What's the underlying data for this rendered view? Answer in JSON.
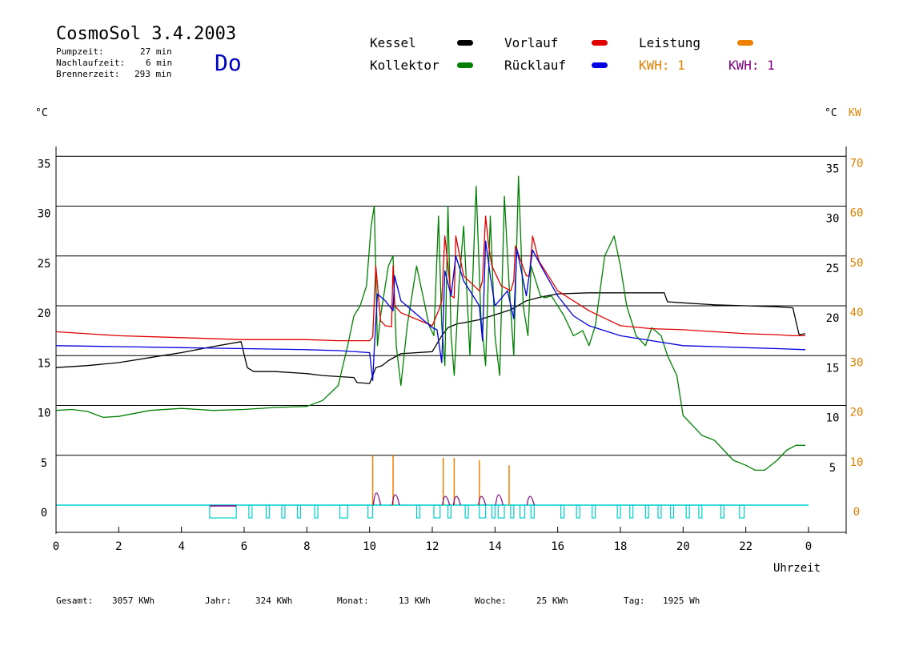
{
  "header": {
    "title": "CosmoSol 3.4.2003",
    "day": "Do",
    "stats": [
      {
        "label": "Pumpzeit:",
        "value": "27 min"
      },
      {
        "label": "Nachlaufzeit:",
        "value": "6 min"
      },
      {
        "label": "Brennerzeit:",
        "value": "293 min"
      }
    ]
  },
  "legend": {
    "kessel": "Kessel",
    "kollektor": "Kollektor",
    "vorlauf": "Vorlauf",
    "ruecklauf": "Rücklauf",
    "leistung": "Leistung",
    "kwh_orange": "KWH: 1",
    "kwh_purple": "KWH: 1"
  },
  "colors": {
    "kessel": "#000000",
    "kollektor": "#008000",
    "vorlauf": "#e00000",
    "ruecklauf": "#0000e0",
    "leistung": "#f08000",
    "kwh_purple": "#800080",
    "pump": "#00d0d0",
    "day": "#0000c0"
  },
  "axes": {
    "left_unit": "°C",
    "right_unit_c": "°C",
    "right_unit_kw": "KW",
    "x_label": "Uhrzeit"
  },
  "footer": [
    {
      "label": "Gesamt:",
      "value": "3057 KWh"
    },
    {
      "label": "Jahr:",
      "value": "324 KWh"
    },
    {
      "label": "Monat:",
      "value": "13 KWh"
    },
    {
      "label": "Woche:",
      "value": "25 KWh"
    },
    {
      "label": "Tag:",
      "value": "1925 Wh"
    }
  ],
  "chart_data": {
    "type": "line",
    "xlim": [
      0,
      24
    ],
    "ylim": [
      0,
      35
    ],
    "y2lim": [
      0,
      70
    ],
    "x_ticks": [
      "0",
      "2",
      "4",
      "6",
      "8",
      "10",
      "12",
      "14",
      "16",
      "18",
      "20",
      "22",
      "0"
    ],
    "y_left_ticks": [
      "0",
      "5",
      "10",
      "15",
      "20",
      "25",
      "30",
      "35"
    ],
    "y_right_c_ticks": [
      "5",
      "10",
      "15",
      "20",
      "25",
      "30",
      "35"
    ],
    "y_right_kw_ticks": [
      "0",
      "10",
      "20",
      "30",
      "40",
      "50",
      "60",
      "70"
    ],
    "grid": true,
    "series": [
      {
        "name": "Kessel",
        "color": "#000000",
        "x": [
          0,
          1,
          2,
          3,
          4,
          5,
          5.9,
          6.1,
          6.3,
          7,
          8,
          8.5,
          9.5,
          9.6,
          10,
          10.2,
          10.4,
          10.6,
          11,
          12,
          12.3,
          12.5,
          12.8,
          13,
          13.5,
          14,
          14.5,
          15,
          15.5,
          16,
          17,
          18,
          19,
          19.4,
          19.5,
          20,
          21,
          22,
          23,
          23.5,
          23.7,
          23.9
        ],
        "y": [
          13.8,
          14,
          14.3,
          14.8,
          15.3,
          15.9,
          16.4,
          13.8,
          13.4,
          13.4,
          13.2,
          13.0,
          12.8,
          12.3,
          12.2,
          13.8,
          14,
          14.5,
          15.2,
          15.4,
          17,
          17.8,
          18.2,
          18.3,
          18.6,
          19.1,
          19.6,
          20.5,
          20.9,
          21.2,
          21.3,
          21.3,
          21.3,
          21.3,
          20.4,
          20.3,
          20.1,
          20.0,
          19.9,
          19.8,
          17.1,
          17.2
        ]
      },
      {
        "name": "Kollektor",
        "color": "#008000",
        "x": [
          0,
          0.5,
          1,
          1.5,
          2,
          3,
          4,
          5,
          6,
          7,
          8,
          8.5,
          9,
          9.3,
          9.5,
          9.7,
          9.9,
          10.05,
          10.15,
          10.25,
          10.35,
          10.6,
          10.75,
          10.85,
          11,
          11.2,
          11.4,
          11.5,
          11.7,
          11.9,
          12.05,
          12.2,
          12.3,
          12.4,
          12.5,
          12.6,
          12.7,
          12.85,
          13,
          13.2,
          13.4,
          13.55,
          13.7,
          13.85,
          14,
          14.15,
          14.3,
          14.45,
          14.6,
          14.75,
          14.9,
          15.05,
          15.15,
          15.25,
          15.35,
          15.45,
          15.6,
          15.8,
          15.9,
          16,
          16.2,
          16.5,
          16.8,
          17,
          17.2,
          17.5,
          17.8,
          18,
          18.2,
          18.5,
          18.8,
          19,
          19.3,
          19.5,
          19.8,
          20,
          20.3,
          20.6,
          21,
          21.3,
          21.6,
          22,
          22.3,
          22.6,
          23,
          23.3,
          23.6,
          23.9
        ],
        "y": [
          9.5,
          9.6,
          9.4,
          8.8,
          8.9,
          9.5,
          9.7,
          9.5,
          9.6,
          9.8,
          9.9,
          10.5,
          12,
          16,
          19,
          20,
          22,
          28,
          30,
          16,
          19,
          24,
          25,
          16,
          12,
          18,
          22,
          24,
          21,
          18,
          17,
          29,
          18,
          14,
          30,
          17,
          13,
          22,
          28,
          15,
          32,
          19,
          14,
          29,
          17,
          13,
          31,
          22,
          15,
          33,
          20,
          17,
          24,
          23,
          22,
          21,
          20.8,
          21,
          20.5,
          20,
          19,
          17,
          17.5,
          16,
          18,
          25,
          27,
          24,
          20,
          17,
          16,
          17.8,
          17,
          15,
          13,
          9,
          8,
          7,
          6.5,
          5.5,
          4.5,
          4,
          3.5,
          3.5,
          4.5,
          5.5,
          6,
          6
        ]
      },
      {
        "name": "Vorlauf",
        "color": "#e00000",
        "x": [
          0,
          2,
          4,
          6,
          8,
          9,
          10,
          10.1,
          10.2,
          10.35,
          10.5,
          10.7,
          10.75,
          10.8,
          11,
          12,
          12.2,
          12.3,
          12.4,
          12.6,
          12.7,
          12.75,
          13,
          13.5,
          13.6,
          13.7,
          13.8,
          13.9,
          14.2,
          14.5,
          14.6,
          14.65,
          15,
          15.1,
          15.2,
          15.4,
          16,
          17,
          18,
          19,
          20,
          21,
          22,
          23,
          23.5,
          23.9
        ],
        "y": [
          17.4,
          17.0,
          16.8,
          16.6,
          16.6,
          16.5,
          16.5,
          16.9,
          24,
          18.5,
          18,
          17.9,
          24,
          20,
          19.3,
          18,
          19.5,
          20.5,
          27,
          21,
          20.8,
          27,
          23,
          21.5,
          22.5,
          29,
          26,
          24,
          22,
          21.5,
          22.5,
          26,
          23,
          23,
          27,
          24.5,
          21.5,
          19.5,
          18,
          17.7,
          17.6,
          17.4,
          17.2,
          17.1,
          17.0,
          17.0
        ]
      },
      {
        "name": "Rücklauf",
        "color": "#0000e0",
        "x": [
          0,
          2,
          4,
          6,
          8,
          9,
          10,
          10.1,
          10.15,
          10.25,
          10.5,
          10.75,
          10.8,
          11,
          12,
          12.15,
          12.3,
          12.4,
          12.6,
          12.75,
          13,
          13.5,
          13.6,
          13.7,
          13.85,
          14,
          14.4,
          14.6,
          14.7,
          15,
          15.2,
          15.5,
          16,
          16.5,
          17,
          18,
          19,
          20,
          21,
          22,
          23,
          23.9
        ],
        "y": [
          16.0,
          15.9,
          15.8,
          15.7,
          15.6,
          15.5,
          15.3,
          12.5,
          15.6,
          21.2,
          20.5,
          19.5,
          23,
          20.5,
          17.8,
          17.6,
          14.3,
          23.5,
          21,
          25,
          22.5,
          20,
          16.5,
          26.5,
          23,
          20,
          21.5,
          18.7,
          25.7,
          21,
          25.6,
          23.8,
          21,
          19,
          18,
          17,
          16.5,
          16,
          15.9,
          15.8,
          15.7,
          15.6
        ]
      }
    ],
    "leistung_kw": [
      {
        "x": 10.1,
        "y": 10
      },
      {
        "x": 10.75,
        "y": 10
      },
      {
        "x": 12.35,
        "y": 9.5
      },
      {
        "x": 12.7,
        "y": 9.5
      },
      {
        "x": 13.5,
        "y": 9
      },
      {
        "x": 14.45,
        "y": 8
      }
    ],
    "kwh_purple_kw": [
      {
        "x": 10.2,
        "y": 3.5
      },
      {
        "x": 10.8,
        "y": 3
      },
      {
        "x": 12.4,
        "y": 2.5
      },
      {
        "x": 12.75,
        "y": 2.5
      },
      {
        "x": 13.55,
        "y": 2.5
      },
      {
        "x": 14.1,
        "y": 3
      },
      {
        "x": 15.1,
        "y": 2.5
      }
    ],
    "pump_pulses": [
      [
        4.9,
        5.75
      ],
      [
        6.15,
        6.25
      ],
      [
        6.7,
        6.8
      ],
      [
        7.2,
        7.3
      ],
      [
        7.7,
        7.8
      ],
      [
        8.25,
        8.35
      ],
      [
        9.05,
        9.3
      ],
      [
        9.95,
        10.1
      ],
      [
        11.5,
        11.6
      ],
      [
        12.05,
        12.25
      ],
      [
        12.5,
        12.6
      ],
      [
        13.05,
        13.15
      ],
      [
        13.5,
        13.7
      ],
      [
        13.9,
        14.0
      ],
      [
        14.1,
        14.3
      ],
      [
        14.5,
        14.6
      ],
      [
        14.8,
        14.95
      ],
      [
        15.15,
        15.25
      ],
      [
        16.1,
        16.2
      ],
      [
        16.6,
        16.7
      ],
      [
        17.1,
        17.2
      ],
      [
        17.9,
        18.0
      ],
      [
        18.3,
        18.4
      ],
      [
        18.8,
        18.9
      ],
      [
        19.2,
        19.3
      ],
      [
        19.6,
        19.7
      ],
      [
        20.1,
        20.2
      ],
      [
        20.5,
        20.6
      ],
      [
        21.2,
        21.3
      ],
      [
        21.8,
        21.95
      ]
    ]
  }
}
